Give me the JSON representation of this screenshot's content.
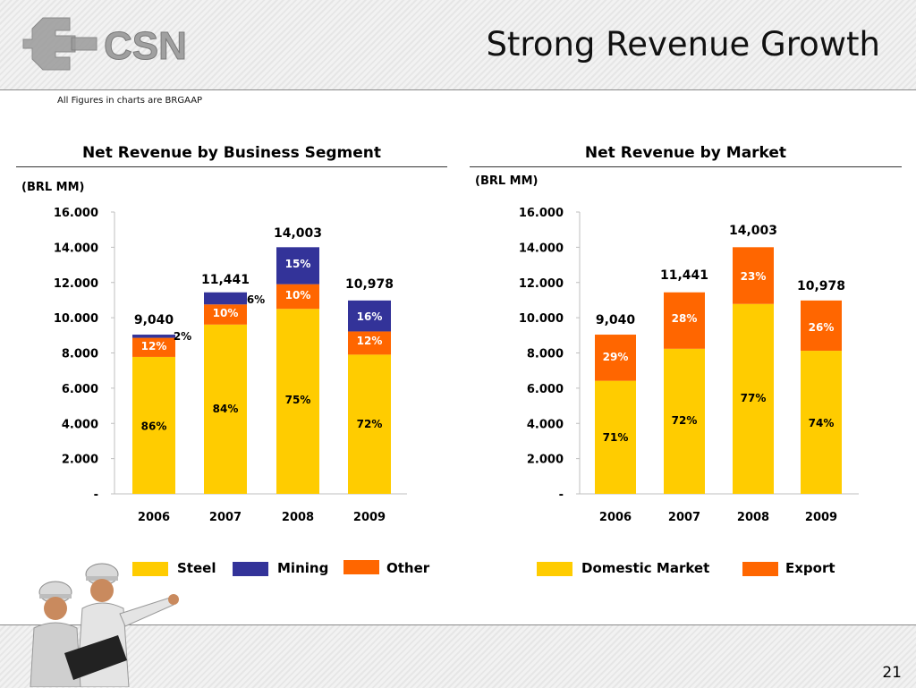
{
  "header": {
    "logo_text": "CSN",
    "title": "Strong Revenue Growth",
    "note": "All Figures in charts are BRGAAP"
  },
  "page_number": "21",
  "colors": {
    "steel": "#FFCC00",
    "mining": "#333399",
    "other": "#FF6600",
    "domestic": "#FFCC00",
    "export": "#FF6600"
  },
  "chart_data": [
    {
      "type": "bar",
      "stacked": true,
      "title": "Net Revenue by Business Segment",
      "unit": "(BRL MM)",
      "categories": [
        "2006",
        "2007",
        "2008",
        "2009"
      ],
      "ylim": [
        0,
        16000
      ],
      "yticks": [
        0,
        2000,
        4000,
        6000,
        8000,
        10000,
        12000,
        14000,
        16000
      ],
      "ytick_labels": [
        "-",
        "2.000",
        "4.000",
        "6.000",
        "8.000",
        "10.000",
        "12.000",
        "14.000",
        "16.000"
      ],
      "totals": [
        9040,
        11441,
        14003,
        10978
      ],
      "total_labels": [
        "9,040",
        "11,441",
        "14,003",
        "10,978"
      ],
      "series": [
        {
          "name": "Steel",
          "color": "#FFCC00",
          "shares": [
            86,
            84,
            75,
            72
          ],
          "labels": [
            "86%",
            "84%",
            "75%",
            "72%"
          ]
        },
        {
          "name": "Other",
          "color": "#FF6600",
          "shares": [
            12,
            10,
            10,
            12
          ],
          "labels": [
            "12%",
            "10%",
            "10%",
            "12%"
          ]
        },
        {
          "name": "Mining",
          "color": "#333399",
          "shares": [
            2,
            6,
            15,
            16
          ],
          "labels": [
            "2%",
            "6%",
            "15%",
            "16%"
          ]
        }
      ],
      "legend": [
        "Steel",
        "Mining",
        "Other"
      ],
      "legend_position": "bottom"
    },
    {
      "type": "bar",
      "stacked": true,
      "title": "Net Revenue by Market",
      "unit": "(BRL MM)",
      "categories": [
        "2006",
        "2007",
        "2008",
        "2009"
      ],
      "ylim": [
        0,
        16000
      ],
      "yticks": [
        0,
        2000,
        4000,
        6000,
        8000,
        10000,
        12000,
        14000,
        16000
      ],
      "ytick_labels": [
        "-",
        "2.000",
        "4.000",
        "6.000",
        "8.000",
        "10.000",
        "12.000",
        "14.000",
        "16.000"
      ],
      "totals": [
        9040,
        11441,
        14003,
        10978
      ],
      "total_labels": [
        "9,040",
        "11,441",
        "14,003",
        "10,978"
      ],
      "series": [
        {
          "name": "Domestic Market",
          "color": "#FFCC00",
          "shares": [
            71,
            72,
            77,
            74
          ],
          "labels": [
            "71%",
            "72%",
            "77%",
            "74%"
          ]
        },
        {
          "name": "Export",
          "color": "#FF6600",
          "shares": [
            29,
            28,
            23,
            26
          ],
          "labels": [
            "29%",
            "28%",
            "23%",
            "26%"
          ]
        }
      ],
      "legend": [
        "Domestic Market",
        "Export"
      ],
      "legend_position": "bottom"
    }
  ]
}
